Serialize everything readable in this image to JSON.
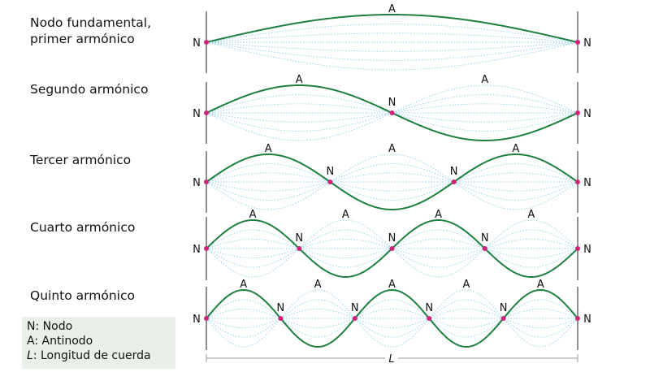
{
  "harmonics": [
    {
      "label_lines": [
        "Nodo fundamental,",
        "primer armónico"
      ],
      "n": 1
    },
    {
      "label_lines": [
        "Segundo armónico"
      ],
      "n": 2
    },
    {
      "label_lines": [
        "Tercer armónico"
      ],
      "n": 3
    },
    {
      "label_lines": [
        "Cuarto armónico"
      ],
      "n": 4
    },
    {
      "label_lines": [
        "Quinto armónico"
      ],
      "n": 5
    }
  ],
  "node_symbol": "N",
  "antinode_symbol": "A",
  "length_symbol": "L",
  "legend": [
    {
      "key": "N",
      "text": ": Nodo"
    },
    {
      "key": "A",
      "text": ": Antinodo"
    },
    {
      "key": "L",
      "text": ": Longitud de cuerda",
      "italic": true
    }
  ],
  "colors": {
    "string": "#1e8040",
    "ghost": "#8fd3e8",
    "node_dot": "#d0227a",
    "legend_bg": "#e9f0e9",
    "measure": "#999999"
  }
}
